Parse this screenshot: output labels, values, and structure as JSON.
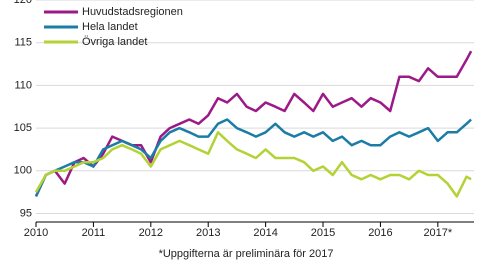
{
  "chart_data": {
    "type": "line",
    "note": "*Uppgifterna är preliminära för 2017",
    "x": [
      2010,
      2010.17,
      2010.33,
      2010.5,
      2010.67,
      2010.83,
      2011,
      2011.17,
      2011.33,
      2011.5,
      2011.67,
      2011.83,
      2012,
      2012.17,
      2012.33,
      2012.5,
      2012.67,
      2012.83,
      2013,
      2013.17,
      2013.33,
      2013.5,
      2013.67,
      2013.83,
      2014,
      2014.17,
      2014.33,
      2014.5,
      2014.67,
      2014.83,
      2015,
      2015.17,
      2015.33,
      2015.5,
      2015.67,
      2015.83,
      2016,
      2016.17,
      2016.33,
      2016.5,
      2016.67,
      2016.83,
      2017,
      2017.17,
      2017.33,
      2017.5,
      2017.58
    ],
    "series": [
      {
        "name": "Huvudstadsregionen",
        "color": "#9c1a87",
        "values": [
          97,
          99.5,
          100,
          98.5,
          101,
          101.5,
          100.5,
          102,
          104,
          103.5,
          103,
          103,
          101,
          104,
          105,
          105.5,
          106,
          105.5,
          106.5,
          108.5,
          108,
          109,
          107.5,
          107,
          108,
          107.5,
          107,
          109,
          108,
          107,
          109,
          107.5,
          108,
          108.5,
          107.5,
          108.5,
          108,
          107,
          111,
          111,
          110.5,
          112,
          111,
          111,
          111,
          113,
          114
        ]
      },
      {
        "name": "Hela landet",
        "color": "#1b7ca6",
        "values": [
          97,
          99.5,
          100,
          100.5,
          101,
          101,
          100.5,
          102.5,
          103,
          103.5,
          103,
          102.5,
          101.5,
          103.5,
          104.5,
          105,
          104.5,
          104,
          104,
          105.5,
          106,
          105,
          104.5,
          104,
          104.5,
          105.5,
          104.5,
          104,
          104.5,
          104,
          104.5,
          103.5,
          104,
          103,
          103.5,
          103,
          103,
          104,
          104.5,
          104,
          104.5,
          105,
          103.5,
          104.5,
          104.5,
          105.5,
          106
        ]
      },
      {
        "name": "Övriga landet",
        "color": "#b3d236",
        "values": [
          97.5,
          99.5,
          100,
          100,
          100.5,
          101,
          101,
          101.5,
          102.5,
          103,
          102.5,
          102,
          100.5,
          102.5,
          103,
          103.5,
          103,
          102.5,
          102,
          104.5,
          103.5,
          102.5,
          102,
          101.5,
          102.5,
          101.5,
          101.5,
          101.5,
          101,
          100,
          100.5,
          99.5,
          101,
          99.5,
          99,
          99.5,
          99,
          99.5,
          99.5,
          99,
          100,
          99.5,
          99.5,
          98.5,
          97,
          99.3,
          99
        ]
      }
    ],
    "xlim": [
      2010,
      2017.63
    ],
    "xticks": [
      2010,
      2011,
      2012,
      2013,
      2014,
      2015,
      2016,
      {
        "value": 2017,
        "label": "2017*"
      }
    ],
    "ylim": [
      94,
      120
    ],
    "yticks": [
      95,
      100,
      105,
      110,
      115,
      120
    ],
    "grid": true,
    "legend": "top-left"
  }
}
